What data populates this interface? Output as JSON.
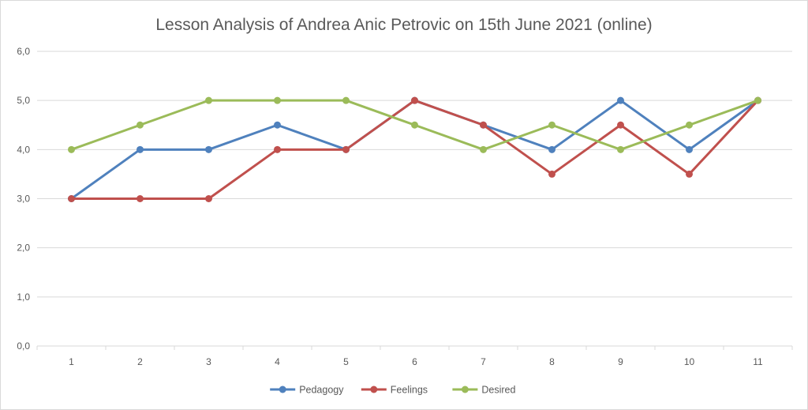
{
  "chart_data": {
    "type": "line",
    "title": "Lesson Analysis of Andrea Anic Petrovic on 15th June 2021 (online)",
    "xlabel": "",
    "ylabel": "",
    "categories": [
      "1",
      "2",
      "3",
      "4",
      "5",
      "6",
      "7",
      "8",
      "9",
      "10",
      "11"
    ],
    "ylim": [
      0,
      6
    ],
    "yticks": [
      "0,0",
      "1,0",
      "2,0",
      "3,0",
      "4,0",
      "5,0",
      "6,0"
    ],
    "grid": true,
    "legend_position": "bottom",
    "series": [
      {
        "name": "Pedagogy",
        "color": "#4f81bd",
        "values": [
          3,
          4,
          4,
          4.5,
          4,
          5,
          4.5,
          4,
          5,
          4,
          5
        ]
      },
      {
        "name": "Feelings",
        "color": "#c0504d",
        "values": [
          3,
          3,
          3,
          4,
          4,
          5,
          4.5,
          3.5,
          4.5,
          3.5,
          5
        ]
      },
      {
        "name": "Desired",
        "color": "#9bbb59",
        "values": [
          4,
          4.5,
          5,
          5,
          5,
          4.5,
          4,
          4.5,
          4,
          4.5,
          5
        ]
      }
    ]
  }
}
